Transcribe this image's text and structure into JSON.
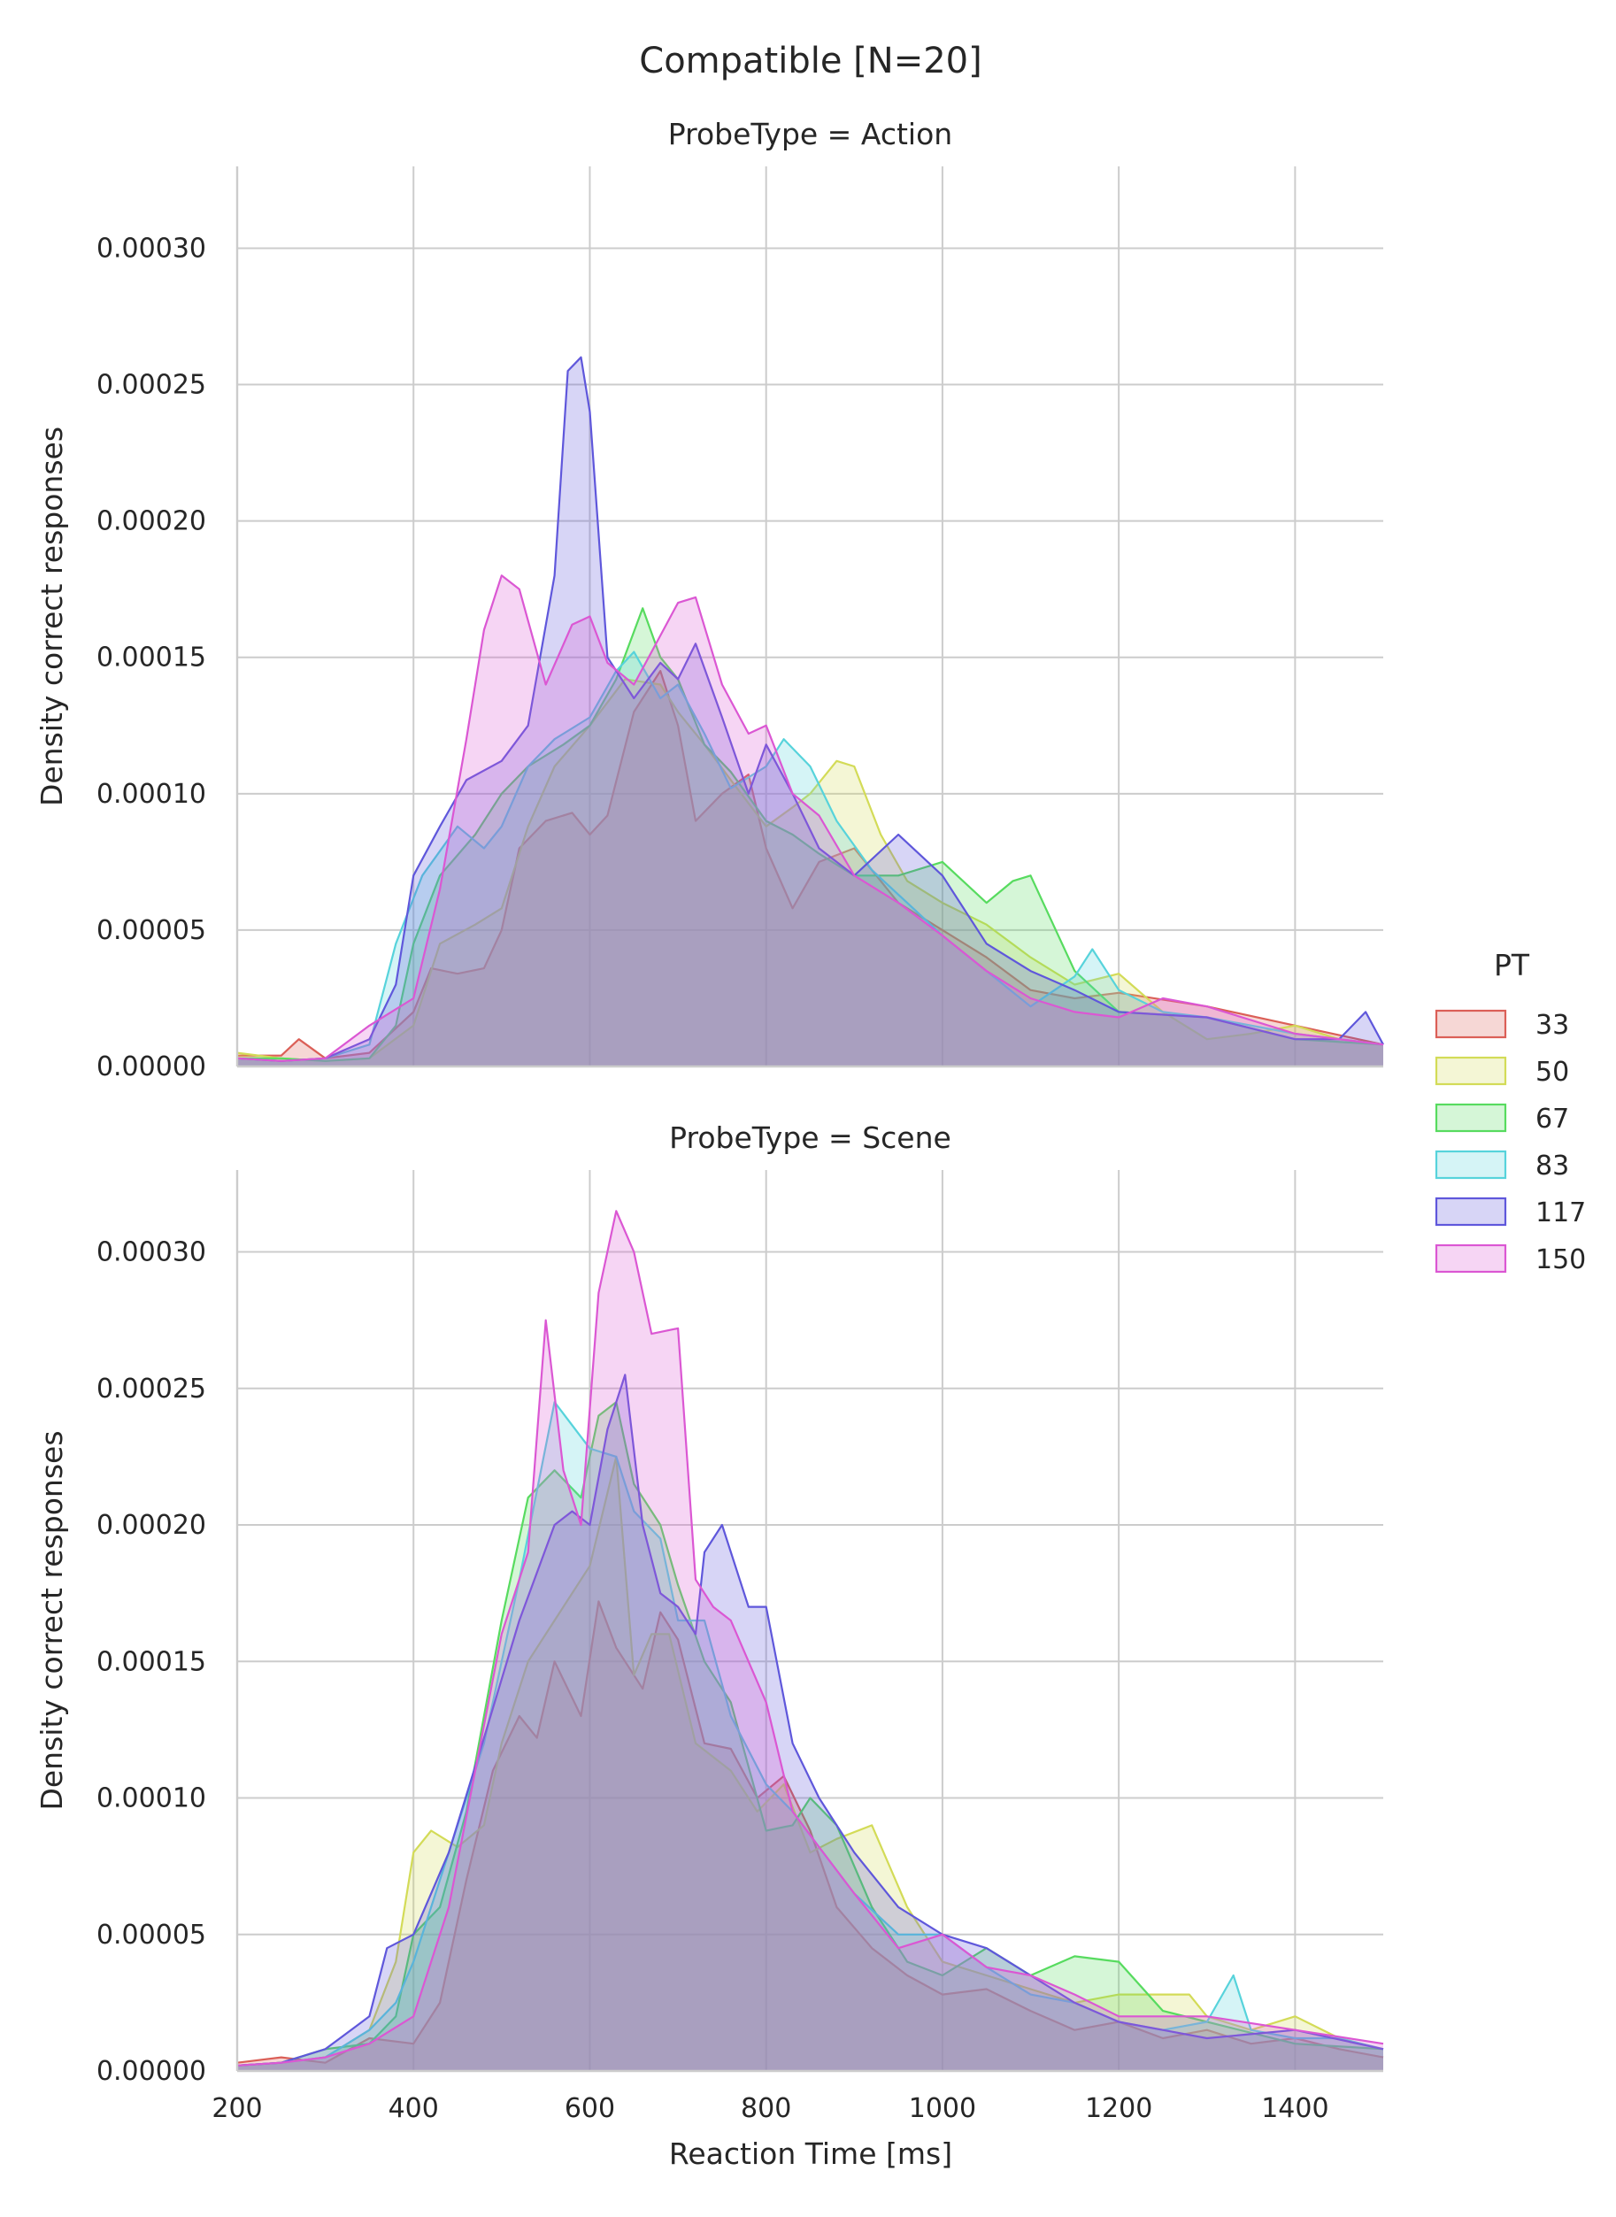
{
  "chart_data": {
    "type": "area",
    "title": "Compatible [N=20]",
    "xlabel": "Reaction Time [ms]",
    "ylabel": "Density correct responses",
    "xlim": [
      200,
      1500
    ],
    "ylim": [
      0,
      0.00033
    ],
    "x_ticks": [
      "200",
      "400",
      "600",
      "800",
      "1000",
      "1200",
      "1400"
    ],
    "y_ticks": [
      "0.00000",
      "0.00005",
      "0.00010",
      "0.00015",
      "0.00020",
      "0.00025",
      "0.00030"
    ],
    "grid": true,
    "legend": {
      "title": "PT",
      "placement": "right",
      "entries": [
        "33",
        "50",
        "67",
        "83",
        "117",
        "150"
      ]
    },
    "series_colors": {
      "33": "#db5f57",
      "50": "#d3db57",
      "67": "#57db5f",
      "83": "#57d3db",
      "117": "#5f57db",
      "150": "#db57d3"
    },
    "panels": [
      {
        "title": "ProbeType = Action",
        "series": [
          {
            "name": "33",
            "x": [
              200,
              250,
              270,
              300,
              350,
              400,
              420,
              450,
              480,
              500,
              520,
              550,
              580,
              600,
              620,
              650,
              680,
              700,
              720,
              750,
              780,
              800,
              830,
              860,
              900,
              950,
              1000,
              1050,
              1100,
              1150,
              1200,
              1300,
              1400,
              1500
            ],
            "y": [
              4e-06,
              4e-06,
              1e-05,
              3e-06,
              5e-06,
              2e-05,
              3.6e-05,
              3.4e-05,
              3.6e-05,
              5e-05,
              8e-05,
              9e-05,
              9.3e-05,
              8.5e-05,
              9.2e-05,
              0.00013,
              0.000145,
              0.000125,
              9e-05,
              0.0001,
              0.000107,
              8e-05,
              5.8e-05,
              7.5e-05,
              8e-05,
              6e-05,
              5e-05,
              4e-05,
              2.8e-05,
              2.5e-05,
              2.7e-05,
              2.2e-05,
              1.5e-05,
              8e-06
            ]
          },
          {
            "name": "50",
            "x": [
              200,
              250,
              300,
              350,
              400,
              430,
              470,
              500,
              530,
              560,
              600,
              640,
              680,
              700,
              730,
              760,
              800,
              830,
              850,
              880,
              900,
              930,
              960,
              1000,
              1050,
              1100,
              1150,
              1200,
              1250,
              1300,
              1350,
              1400,
              1450,
              1500
            ],
            "y": [
              5e-06,
              3e-06,
              2e-06,
              3e-06,
              1.5e-05,
              4.5e-05,
              5.2e-05,
              5.8e-05,
              8.8e-05,
              0.00011,
              0.000125,
              0.000142,
              0.00014,
              0.00013,
              0.000118,
              0.000105,
              8.8e-05,
              9.5e-05,
              0.0001,
              0.000112,
              0.00011,
              8.5e-05,
              6.8e-05,
              6e-05,
              5.2e-05,
              4e-05,
              3e-05,
              3.4e-05,
              2e-05,
              1e-05,
              1.2e-05,
              1.5e-05,
              1e-05,
              8e-06
            ]
          },
          {
            "name": "67",
            "x": [
              200,
              250,
              300,
              350,
              380,
              400,
              430,
              470,
              500,
              530,
              570,
              600,
              630,
              660,
              680,
              700,
              730,
              760,
              800,
              830,
              860,
              900,
              950,
              1000,
              1050,
              1080,
              1100,
              1150,
              1200,
              1300,
              1400,
              1500
            ],
            "y": [
              3e-06,
              3e-06,
              2e-06,
              3e-06,
              1.5e-05,
              4.5e-05,
              7e-05,
              8.5e-05,
              0.0001,
              0.00011,
              0.000118,
              0.000125,
              0.000142,
              0.000168,
              0.00015,
              0.000142,
              0.000118,
              0.000108,
              9e-05,
              8.5e-05,
              7.8e-05,
              7e-05,
              7e-05,
              7.5e-05,
              6e-05,
              6.8e-05,
              7e-05,
              3.5e-05,
              2e-05,
              1.8e-05,
              1e-05,
              8e-06
            ]
          },
          {
            "name": "83",
            "x": [
              200,
              250,
              300,
              350,
              380,
              410,
              450,
              480,
              500,
              530,
              560,
              600,
              630,
              650,
              680,
              700,
              730,
              760,
              800,
              820,
              850,
              880,
              920,
              960,
              1000,
              1050,
              1100,
              1150,
              1170,
              1200,
              1250,
              1300,
              1400,
              1500
            ],
            "y": [
              3e-06,
              2e-06,
              3e-06,
              8e-06,
              4.5e-05,
              7e-05,
              8.8e-05,
              8e-05,
              8.8e-05,
              0.00011,
              0.00012,
              0.000128,
              0.000145,
              0.000152,
              0.000135,
              0.00014,
              0.000122,
              0.000102,
              0.00011,
              0.00012,
              0.00011,
              9e-05,
              7.2e-05,
              6e-05,
              4.8e-05,
              3.5e-05,
              2.2e-05,
              3.3e-05,
              4.3e-05,
              2.8e-05,
              2e-05,
              1.8e-05,
              1.2e-05,
              8e-06
            ]
          },
          {
            "name": "117",
            "x": [
              200,
              250,
              300,
              350,
              380,
              400,
              430,
              460,
              500,
              530,
              560,
              575,
              590,
              600,
              620,
              650,
              680,
              700,
              720,
              750,
              780,
              800,
              830,
              860,
              900,
              950,
              1000,
              1050,
              1100,
              1150,
              1200,
              1300,
              1400,
              1450,
              1480,
              1500
            ],
            "y": [
              3e-06,
              2e-06,
              3e-06,
              1e-05,
              3e-05,
              7e-05,
              8.8e-05,
              0.000105,
              0.000112,
              0.000125,
              0.00018,
              0.000255,
              0.00026,
              0.00024,
              0.00015,
              0.000135,
              0.000148,
              0.000142,
              0.000155,
              0.000128,
              0.0001,
              0.000118,
              0.0001,
              8e-05,
              7e-05,
              8.5e-05,
              7e-05,
              4.5e-05,
              3.5e-05,
              2.8e-05,
              2e-05,
              1.8e-05,
              1e-05,
              1e-05,
              2e-05,
              8e-06
            ]
          },
          {
            "name": "150",
            "x": [
              200,
              250,
              300,
              350,
              400,
              430,
              460,
              480,
              500,
              520,
              550,
              580,
              600,
              620,
              650,
              680,
              700,
              720,
              750,
              780,
              800,
              830,
              860,
              900,
              950,
              1000,
              1050,
              1100,
              1150,
              1200,
              1250,
              1300,
              1400,
              1500
            ],
            "y": [
              3e-06,
              2e-06,
              3e-06,
              1.5e-05,
              2.5e-05,
              6.5e-05,
              0.00012,
              0.00016,
              0.00018,
              0.000175,
              0.00014,
              0.000162,
              0.000165,
              0.000148,
              0.00014,
              0.000158,
              0.00017,
              0.000172,
              0.00014,
              0.000122,
              0.000125,
              0.0001,
              9.2e-05,
              7e-05,
              6e-05,
              4.8e-05,
              3.5e-05,
              2.5e-05,
              2e-05,
              1.8e-05,
              2.5e-05,
              2.2e-05,
              1.2e-05,
              8e-06
            ]
          }
        ]
      },
      {
        "title": "ProbeType = Scene",
        "series": [
          {
            "name": "33",
            "x": [
              200,
              250,
              300,
              350,
              400,
              430,
              460,
              490,
              520,
              540,
              560,
              590,
              610,
              630,
              660,
              680,
              700,
              730,
              760,
              790,
              820,
              850,
              880,
              920,
              960,
              1000,
              1050,
              1100,
              1150,
              1200,
              1250,
              1300,
              1350,
              1400,
              1450,
              1500
            ],
            "y": [
              3e-06,
              5e-06,
              3e-06,
              1.2e-05,
              1e-05,
              2.5e-05,
              7e-05,
              0.00011,
              0.00013,
              0.000122,
              0.00015,
              0.00013,
              0.000172,
              0.000155,
              0.00014,
              0.000168,
              0.000158,
              0.00012,
              0.000118,
              0.0001,
              0.000108,
              8.8e-05,
              6e-05,
              4.5e-05,
              3.5e-05,
              2.8e-05,
              3e-05,
              2.2e-05,
              1.5e-05,
              1.8e-05,
              1.2e-05,
              1.5e-05,
              1e-05,
              1.2e-05,
              8e-06,
              5e-06
            ]
          },
          {
            "name": "50",
            "x": [
              200,
              250,
              300,
              350,
              380,
              400,
              420,
              450,
              480,
              500,
              530,
              560,
              600,
              630,
              650,
              670,
              690,
              720,
              760,
              790,
              820,
              850,
              880,
              920,
              960,
              1000,
              1050,
              1100,
              1150,
              1200,
              1280,
              1300,
              1350,
              1400,
              1450,
              1500
            ],
            "y": [
              2e-06,
              3e-06,
              5e-06,
              1.5e-05,
              4e-05,
              8e-05,
              8.8e-05,
              8.2e-05,
              9e-05,
              0.00012,
              0.00015,
              0.000165,
              0.000185,
              0.000225,
              0.000145,
              0.00016,
              0.00016,
              0.00012,
              0.00011,
              9.5e-05,
              0.000105,
              8e-05,
              8.5e-05,
              9e-05,
              6e-05,
              4e-05,
              3.5e-05,
              3e-05,
              2.5e-05,
              2.8e-05,
              2.8e-05,
              2e-05,
              1.5e-05,
              2e-05,
              1.2e-05,
              8e-06
            ]
          },
          {
            "name": "67",
            "x": [
              200,
              250,
              300,
              350,
              380,
              400,
              430,
              460,
              500,
              530,
              560,
              590,
              610,
              630,
              650,
              680,
              700,
              730,
              760,
              800,
              830,
              850,
              880,
              920,
              960,
              1000,
              1050,
              1100,
              1150,
              1200,
              1250,
              1300,
              1400,
              1500
            ],
            "y": [
              2e-06,
              3e-06,
              8e-06,
              1e-05,
              2e-05,
              5e-05,
              6e-05,
              9.5e-05,
              0.000165,
              0.00021,
              0.00022,
              0.00021,
              0.00024,
              0.000245,
              0.000215,
              0.0002,
              0.000178,
              0.00015,
              0.000135,
              8.8e-05,
              9e-05,
              0.0001,
              9e-05,
              6e-05,
              4e-05,
              3.5e-05,
              4.5e-05,
              3.5e-05,
              4.2e-05,
              4e-05,
              2.2e-05,
              1.8e-05,
              1e-05,
              8e-06
            ]
          },
          {
            "name": "83",
            "x": [
              200,
              250,
              300,
              350,
              380,
              400,
              440,
              480,
              520,
              560,
              600,
              630,
              650,
              680,
              700,
              730,
              760,
              800,
              830,
              860,
              900,
              950,
              1000,
              1050,
              1100,
              1150,
              1200,
              1250,
              1300,
              1330,
              1350,
              1400,
              1450,
              1500
            ],
            "y": [
              2e-06,
              3e-06,
              5e-06,
              1.5e-05,
              2.5e-05,
              4e-05,
              8e-05,
              0.00012,
              0.00018,
              0.000245,
              0.000228,
              0.000225,
              0.000205,
              0.000195,
              0.000165,
              0.000165,
              0.00013,
              0.000105,
              9.5e-05,
              8.2e-05,
              6.5e-05,
              5e-05,
              5e-05,
              3.8e-05,
              2.8e-05,
              2.5e-05,
              1.8e-05,
              1.5e-05,
              1.8e-05,
              3.5e-05,
              1.5e-05,
              1.2e-05,
              1.2e-05,
              8e-06
            ]
          },
          {
            "name": "117",
            "x": [
              200,
              250,
              300,
              350,
              370,
              400,
              440,
              480,
              520,
              560,
              580,
              600,
              620,
              640,
              660,
              680,
              700,
              720,
              730,
              750,
              780,
              800,
              830,
              860,
              900,
              950,
              1000,
              1050,
              1100,
              1150,
              1200,
              1250,
              1300,
              1400,
              1500
            ],
            "y": [
              2e-06,
              3e-06,
              8e-06,
              2e-05,
              4.5e-05,
              5e-05,
              8e-05,
              0.000122,
              0.000165,
              0.0002,
              0.000205,
              0.0002,
              0.000235,
              0.000255,
              0.0002,
              0.000175,
              0.00017,
              0.00016,
              0.00019,
              0.0002,
              0.00017,
              0.00017,
              0.00012,
              0.0001,
              8e-05,
              6e-05,
              5e-05,
              4.5e-05,
              3.5e-05,
              2.5e-05,
              1.8e-05,
              1.5e-05,
              1.2e-05,
              1.5e-05,
              8e-06
            ]
          },
          {
            "name": "150",
            "x": [
              200,
              250,
              300,
              350,
              400,
              440,
              470,
              500,
              530,
              550,
              570,
              590,
              610,
              630,
              650,
              670,
              700,
              720,
              740,
              760,
              800,
              830,
              860,
              900,
              950,
              1000,
              1050,
              1100,
              1150,
              1200,
              1300,
              1400,
              1500
            ],
            "y": [
              2e-06,
              3e-06,
              5e-06,
              1e-05,
              2e-05,
              6e-05,
              0.00011,
              0.00016,
              0.00019,
              0.000275,
              0.00022,
              0.0002,
              0.000285,
              0.000315,
              0.0003,
              0.00027,
              0.000272,
              0.00018,
              0.00017,
              0.000165,
              0.000135,
              9.5e-05,
              8.2e-05,
              6.5e-05,
              4.5e-05,
              5e-05,
              3.8e-05,
              3.5e-05,
              2.8e-05,
              2e-05,
              2e-05,
              1.5e-05,
              1e-05
            ]
          }
        ]
      }
    ]
  }
}
